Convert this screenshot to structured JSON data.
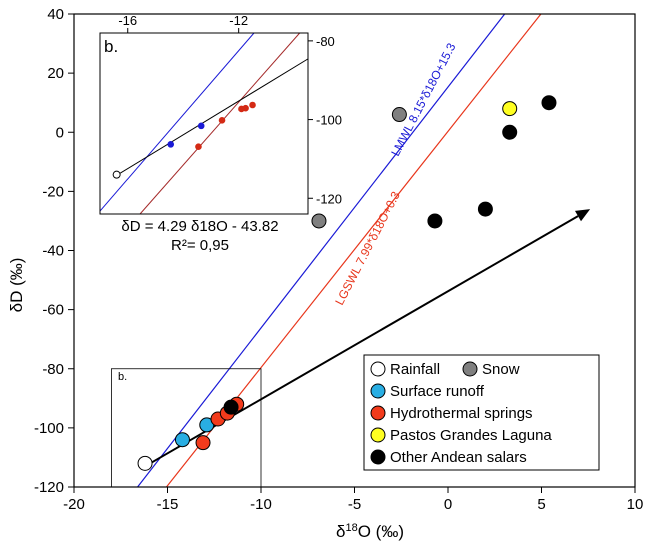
{
  "chart_data": [
    {
      "type": "scatter",
      "xlabel": "δ18O (‰)",
      "ylabel": "δD (‰)",
      "xlim": [
        -20,
        10
      ],
      "ylim": [
        -120,
        40
      ],
      "xticks": [
        -20,
        -15,
        -10,
        -5,
        0,
        5,
        10
      ],
      "yticks": [
        -120,
        -100,
        -80,
        -60,
        -40,
        -20,
        0,
        20,
        40
      ],
      "grid": false,
      "legend_placement": "bottom-right",
      "series": [
        {
          "name": "Rainfall",
          "color": "#ffffff",
          "x": [
            -16.2
          ],
          "y": [
            -112
          ]
        },
        {
          "name": "Snow",
          "color": "#808080",
          "x": [
            -2.6,
            -6.9
          ],
          "y": [
            6,
            -30
          ]
        },
        {
          "name": "Surface runoff",
          "color": "#29aee3",
          "x": [
            -14.2,
            -12.9
          ],
          "y": [
            -104,
            -99
          ]
        },
        {
          "name": "Hydrothermal springs",
          "color": "#f23b1c",
          "x": [
            -13.1,
            -12.3,
            -11.8,
            -11.3
          ],
          "y": [
            -105,
            -97,
            -95,
            -92
          ]
        },
        {
          "name": "Pastos Grandes Laguna",
          "color": "#ffff22",
          "x": [
            3.3
          ],
          "y": [
            8
          ]
        },
        {
          "name": "Other Andean salars",
          "color": "#000000",
          "x": [
            5.4,
            3.3,
            -0.7,
            2.0,
            -11.6
          ],
          "y": [
            10,
            0,
            -30,
            -26,
            -93
          ]
        }
      ],
      "lines": [
        {
          "label": "LMWL 8.15*δ18O+15.3",
          "color": "#1a1ad6",
          "slope": 8.15,
          "intercept": 15.3
        },
        {
          "label": "LGSWL 7.99*δ18O+0.3",
          "color": "#e8361c",
          "slope": 7.99,
          "intercept": 0.3
        }
      ],
      "arrow": {
        "from": [
          -16.2,
          -113
        ],
        "to": [
          7.6,
          -26
        ],
        "color": "#000000"
      },
      "box": {
        "label": "b.",
        "x": [
          -18,
          -10
        ],
        "y": [
          -120,
          -80
        ]
      }
    },
    {
      "type": "scatter",
      "panel_label": "b.",
      "xlim": [
        -17,
        -9.5
      ],
      "ylim": [
        -124,
        -78
      ],
      "xticks": [
        -16,
        -12
      ],
      "yticks": [
        -80,
        -100,
        -120
      ],
      "series": [
        {
          "name": "Rainfall",
          "color": "#ffffff",
          "x": [
            -16.4
          ],
          "y": [
            -114
          ]
        },
        {
          "name": "Surface runoff",
          "color": "#1a1ad6",
          "x": [
            -14.45,
            -13.35
          ],
          "y": [
            -106.3,
            -101.6
          ]
        },
        {
          "name": "Hydrothermal springs",
          "color": "#d42a15",
          "x": [
            -13.45,
            -12.6,
            -11.9,
            -11.75,
            -11.5
          ],
          "y": [
            -106.9,
            -100.2,
            -97.3,
            -97.1,
            -96.3
          ]
        }
      ],
      "lines": [
        {
          "label": "LMWL",
          "color": "#1a1ad6",
          "slope": 8.15,
          "intercept": 15.3
        },
        {
          "label": "LGSWL",
          "color": "#a52a2a",
          "slope": 7.99,
          "intercept": 0.3
        },
        {
          "label": "regression",
          "color": "#000000",
          "slope": 4.29,
          "intercept": -43.82
        }
      ],
      "equation": "δD = 4.29 δ18O - 43.82",
      "r2": "R²= 0,95"
    }
  ],
  "labels": {
    "xaxis_prefix": "δ",
    "xaxis_sup": "18",
    "xaxis_suffix": "O (‰)",
    "yaxis": "δD (‰)",
    "lmwl_text": "LMWL 8.15*δ18O+15.3",
    "lgswl_text": "LGSWL 7.99*δ18O+0.3",
    "box_label": "b.",
    "inset_label": "b.",
    "inset_equation": "δD = 4.29 δ18O - 43.82",
    "inset_r2": "R²= 0,95"
  },
  "legend": [
    {
      "label": "Rainfall",
      "color": "#ffffff"
    },
    {
      "label": "Snow",
      "color": "#808080"
    },
    {
      "label": "Surface runoff",
      "color": "#29aee3"
    },
    {
      "label": "Hydrothermal springs",
      "color": "#f23b1c"
    },
    {
      "label": "Pastos Grandes Laguna",
      "color": "#ffff22"
    },
    {
      "label": "Other Andean salars",
      "color": "#000000"
    }
  ]
}
